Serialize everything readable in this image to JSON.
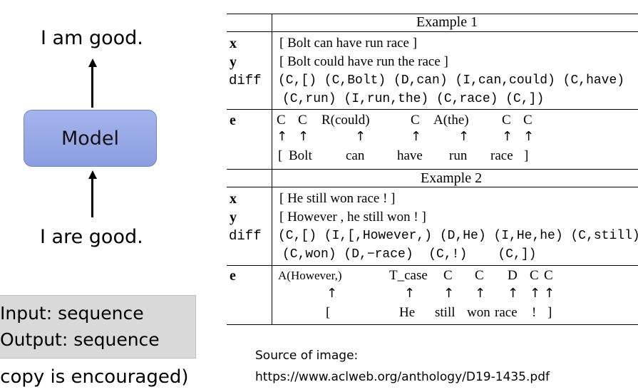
{
  "left_panel": {
    "output_text": "I am good.",
    "model_label": "Model",
    "input_text": "I are good.",
    "io_box": {
      "line1": "Input: sequence",
      "line2": "Output: sequence"
    },
    "copy_note": "(copy is encouraged)"
  },
  "source": {
    "label": "Source of image:",
    "url": "https://www.aclweb.org/anthology/D19-1435.pdf"
  },
  "table": {
    "example1": {
      "title": "Example 1",
      "x_label": "x",
      "x": "[ Bolt can have run race ]",
      "y_label": "y",
      "y": "[ Bolt could have run the race ]",
      "diff_label": "diff",
      "diff_line1": "(C,[) (C,Bolt) (D,can) (I,can,could) (C,have)",
      "diff_line2": "(C,run) (I,run,the) (C,race) (C,])",
      "e_label": "e",
      "edits": [
        "C",
        "C",
        "R(could)",
        "C",
        "A(the)",
        "C",
        "C"
      ],
      "tokens": [
        "[",
        "Bolt",
        "can",
        "have",
        "run",
        "race",
        "]"
      ]
    },
    "example2": {
      "title": "Example 2",
      "x_label": "x",
      "x": "[ He still won race ! ]",
      "y_label": "y",
      "y": "[ However , he still won ! ]",
      "diff_label": "diff",
      "diff_line1": "(C,[) (I,[,However,) (D,He) (I,He,he) (C,still)",
      "diff_line2": "(C,won) (D,−race)  (C,!)    (C,])",
      "e_label": "e",
      "edits": [
        "A(However,)",
        "T_case",
        "C",
        "C",
        "D",
        "C",
        "C"
      ],
      "tokens": [
        "[",
        "He",
        "still",
        "won",
        "race",
        "!",
        "]"
      ]
    },
    "arrow_glyph": "↑"
  }
}
